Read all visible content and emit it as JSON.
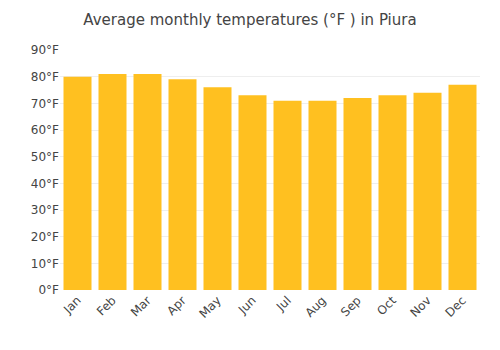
{
  "chart_data": {
    "type": "bar",
    "title": "Average monthly temperatures (°F ) in Piura",
    "categories": [
      "Jan",
      "Feb",
      "Mar",
      "Apr",
      "May",
      "Jun",
      "Jul",
      "Aug",
      "Sep",
      "Oct",
      "Nov",
      "Dec"
    ],
    "values": [
      80,
      81,
      81,
      79,
      76,
      73,
      71,
      71,
      72,
      73,
      74,
      77
    ],
    "color": "#FFC020",
    "ylim": [
      0,
      90
    ],
    "yticks": [
      {
        "value": 0,
        "label": "0°F"
      },
      {
        "value": 10,
        "label": "10°F"
      },
      {
        "value": 20,
        "label": "20°F"
      },
      {
        "value": 30,
        "label": "30°F"
      },
      {
        "value": 40,
        "label": "40°F"
      },
      {
        "value": 50,
        "label": "50°F"
      },
      {
        "value": 60,
        "label": "60°F"
      },
      {
        "value": 70,
        "label": "70°F"
      },
      {
        "value": 80,
        "label": "80°F"
      },
      {
        "value": 90,
        "label": "90°F"
      }
    ],
    "grid": true
  }
}
